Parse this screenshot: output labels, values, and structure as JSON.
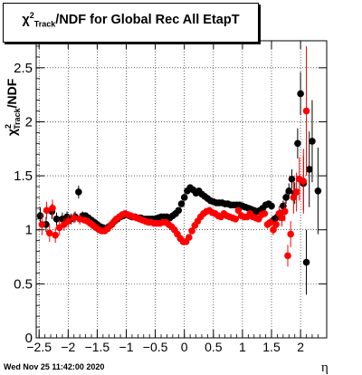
{
  "chart_data": {
    "type": "scatter",
    "title": {
      "symbol": "χ",
      "sup": "2",
      "sub": "Track",
      "rest": "/NDF for Global Rec All EtapT"
    },
    "xlabel": "η",
    "ylabel": {
      "symbol": "χ",
      "sup": "2",
      "sub": "Track",
      "rest": "/NDF"
    },
    "xlim": [
      -2.55,
      2.45
    ],
    "ylim": [
      0,
      2.75
    ],
    "x_ticks": [
      -2.5,
      -2,
      -1.5,
      -1,
      -0.5,
      0,
      0.5,
      1,
      1.5,
      2
    ],
    "x_tick_labels": [
      "−2.5",
      "−2",
      "−1.5",
      "−1",
      "−0.5",
      "0",
      "0.5",
      "1",
      "1.5",
      "2"
    ],
    "y_ticks": [
      0,
      0.5,
      1,
      1.5,
      2,
      2.5
    ],
    "y_tick_labels": [
      "0",
      "0.5",
      "1",
      "1.5",
      "2",
      "2.5"
    ],
    "grid": true,
    "series": [
      {
        "color": "#000000",
        "points": [
          {
            "x": -2.48,
            "y": 1.13,
            "err": 0.08
          },
          {
            "x": -2.38,
            "y": 1.05,
            "err": 0.07
          },
          {
            "x": -2.28,
            "y": 1.17,
            "err": 0.07
          },
          {
            "x": -2.2,
            "y": 1.1,
            "err": 0.06
          },
          {
            "x": -2.1,
            "y": 1.1,
            "err": 0.06
          },
          {
            "x": -2.02,
            "y": 1.12,
            "err": 0.05
          },
          {
            "x": -1.95,
            "y": 1.1,
            "err": 0.05
          },
          {
            "x": -1.88,
            "y": 1.12,
            "err": 0.05
          },
          {
            "x": -1.82,
            "y": 1.35,
            "err": 0.06
          },
          {
            "x": -1.75,
            "y": 1.13,
            "err": 0.04
          },
          {
            "x": -1.7,
            "y": 1.13,
            "err": 0.03
          },
          {
            "x": -1.65,
            "y": 1.11,
            "err": 0.03
          },
          {
            "x": -1.6,
            "y": 1.09,
            "err": 0.03
          },
          {
            "x": -1.55,
            "y": 1.07,
            "err": 0.03
          },
          {
            "x": -1.5,
            "y": 1.05,
            "err": 0.03
          },
          {
            "x": -1.45,
            "y": 1.03,
            "err": 0.02
          },
          {
            "x": -1.4,
            "y": 1.02,
            "err": 0.02
          },
          {
            "x": -1.35,
            "y": 1.01,
            "err": 0.02
          },
          {
            "x": -1.3,
            "y": 1.03,
            "err": 0.02
          },
          {
            "x": -1.25,
            "y": 1.05,
            "err": 0.02
          },
          {
            "x": -1.2,
            "y": 1.08,
            "err": 0.02
          },
          {
            "x": -1.15,
            "y": 1.1,
            "err": 0.02
          },
          {
            "x": -1.1,
            "y": 1.12,
            "err": 0.02
          },
          {
            "x": -1.05,
            "y": 1.13,
            "err": 0.02
          },
          {
            "x": -1.0,
            "y": 1.14,
            "err": 0.02
          },
          {
            "x": -0.95,
            "y": 1.13,
            "err": 0.02
          },
          {
            "x": -0.9,
            "y": 1.12,
            "err": 0.02
          },
          {
            "x": -0.85,
            "y": 1.12,
            "err": 0.02
          },
          {
            "x": -0.8,
            "y": 1.11,
            "err": 0.02
          },
          {
            "x": -0.75,
            "y": 1.11,
            "err": 0.02
          },
          {
            "x": -0.7,
            "y": 1.1,
            "err": 0.02
          },
          {
            "x": -0.65,
            "y": 1.1,
            "err": 0.02
          },
          {
            "x": -0.6,
            "y": 1.1,
            "err": 0.02
          },
          {
            "x": -0.55,
            "y": 1.1,
            "err": 0.02
          },
          {
            "x": -0.5,
            "y": 1.1,
            "err": 0.02
          },
          {
            "x": -0.45,
            "y": 1.11,
            "err": 0.02
          },
          {
            "x": -0.4,
            "y": 1.12,
            "err": 0.02
          },
          {
            "x": -0.35,
            "y": 1.12,
            "err": 0.02
          },
          {
            "x": -0.3,
            "y": 1.12,
            "err": 0.02
          },
          {
            "x": -0.25,
            "y": 1.11,
            "err": 0.02
          },
          {
            "x": -0.2,
            "y": 1.13,
            "err": 0.02
          },
          {
            "x": -0.15,
            "y": 1.15,
            "err": 0.02
          },
          {
            "x": -0.1,
            "y": 1.18,
            "err": 0.02
          },
          {
            "x": -0.05,
            "y": 1.24,
            "err": 0.02
          },
          {
            "x": 0.0,
            "y": 1.3,
            "err": 0.02
          },
          {
            "x": 0.05,
            "y": 1.36,
            "err": 0.02
          },
          {
            "x": 0.1,
            "y": 1.39,
            "err": 0.02
          },
          {
            "x": 0.15,
            "y": 1.37,
            "err": 0.02
          },
          {
            "x": 0.2,
            "y": 1.34,
            "err": 0.02
          },
          {
            "x": 0.25,
            "y": 1.36,
            "err": 0.02
          },
          {
            "x": 0.3,
            "y": 1.33,
            "err": 0.02
          },
          {
            "x": 0.35,
            "y": 1.31,
            "err": 0.02
          },
          {
            "x": 0.4,
            "y": 1.29,
            "err": 0.02
          },
          {
            "x": 0.45,
            "y": 1.27,
            "err": 0.02
          },
          {
            "x": 0.5,
            "y": 1.26,
            "err": 0.02
          },
          {
            "x": 0.55,
            "y": 1.25,
            "err": 0.02
          },
          {
            "x": 0.6,
            "y": 1.25,
            "err": 0.02
          },
          {
            "x": 0.65,
            "y": 1.25,
            "err": 0.02
          },
          {
            "x": 0.7,
            "y": 1.24,
            "err": 0.02
          },
          {
            "x": 0.75,
            "y": 1.24,
            "err": 0.02
          },
          {
            "x": 0.8,
            "y": 1.23,
            "err": 0.02
          },
          {
            "x": 0.85,
            "y": 1.23,
            "err": 0.02
          },
          {
            "x": 0.9,
            "y": 1.23,
            "err": 0.02
          },
          {
            "x": 0.95,
            "y": 1.23,
            "err": 0.02
          },
          {
            "x": 1.0,
            "y": 1.22,
            "err": 0.02
          },
          {
            "x": 1.05,
            "y": 1.21,
            "err": 0.02
          },
          {
            "x": 1.1,
            "y": 1.2,
            "err": 0.02
          },
          {
            "x": 1.15,
            "y": 1.19,
            "err": 0.02
          },
          {
            "x": 1.2,
            "y": 1.18,
            "err": 0.02
          },
          {
            "x": 1.25,
            "y": 1.17,
            "err": 0.02
          },
          {
            "x": 1.3,
            "y": 1.18,
            "err": 0.02
          },
          {
            "x": 1.35,
            "y": 1.2,
            "err": 0.02
          },
          {
            "x": 1.4,
            "y": 1.23,
            "err": 0.03
          },
          {
            "x": 1.45,
            "y": 1.24,
            "err": 0.03
          },
          {
            "x": 1.5,
            "y": 1.22,
            "err": 0.03
          },
          {
            "x": 1.55,
            "y": 1.1,
            "err": 0.03
          },
          {
            "x": 1.6,
            "y": 1.12,
            "err": 0.04
          },
          {
            "x": 1.65,
            "y": 1.15,
            "err": 0.04
          },
          {
            "x": 1.7,
            "y": 1.22,
            "err": 0.05
          },
          {
            "x": 1.75,
            "y": 1.3,
            "err": 0.06
          },
          {
            "x": 1.8,
            "y": 1.36,
            "err": 0.07
          },
          {
            "x": 1.85,
            "y": 1.47,
            "err": 0.09
          },
          {
            "x": 1.9,
            "y": 1.34,
            "err": 0.1
          },
          {
            "x": 1.95,
            "y": 1.8,
            "err": 0.14
          },
          {
            "x": 2.0,
            "y": 2.26,
            "err": 0.2
          },
          {
            "x": 2.05,
            "y": 1.43,
            "err": 0.25
          },
          {
            "x": 2.1,
            "y": 0.7,
            "err": 0.3
          },
          {
            "x": 2.15,
            "y": 1.56,
            "err": 0.35
          },
          {
            "x": 2.2,
            "y": 1.82,
            "err": 0.38
          },
          {
            "x": 2.3,
            "y": 1.36,
            "err": 0.4
          }
        ]
      },
      {
        "color": "#ff0000",
        "points": [
          {
            "x": -2.45,
            "y": 1.05,
            "err": 0.1
          },
          {
            "x": -2.37,
            "y": 1.18,
            "err": 0.08
          },
          {
            "x": -2.32,
            "y": 0.97,
            "err": 0.08
          },
          {
            "x": -2.27,
            "y": 1.2,
            "err": 0.08
          },
          {
            "x": -2.22,
            "y": 0.95,
            "err": 0.07
          },
          {
            "x": -2.15,
            "y": 1.02,
            "err": 0.07
          },
          {
            "x": -2.07,
            "y": 1.05,
            "err": 0.06
          },
          {
            "x": -2.0,
            "y": 1.08,
            "err": 0.06
          },
          {
            "x": -1.9,
            "y": 1.11,
            "err": 0.05
          },
          {
            "x": -1.8,
            "y": 1.1,
            "err": 0.05
          },
          {
            "x": -1.72,
            "y": 1.09,
            "err": 0.03
          },
          {
            "x": -1.67,
            "y": 1.08,
            "err": 0.03
          },
          {
            "x": -1.62,
            "y": 1.06,
            "err": 0.03
          },
          {
            "x": -1.57,
            "y": 1.04,
            "err": 0.03
          },
          {
            "x": -1.52,
            "y": 1.02,
            "err": 0.03
          },
          {
            "x": -1.47,
            "y": 1.0,
            "err": 0.02
          },
          {
            "x": -1.42,
            "y": 0.99,
            "err": 0.02
          },
          {
            "x": -1.37,
            "y": 0.99,
            "err": 0.02
          },
          {
            "x": -1.32,
            "y": 1.01,
            "err": 0.02
          },
          {
            "x": -1.27,
            "y": 1.04,
            "err": 0.02
          },
          {
            "x": -1.22,
            "y": 1.07,
            "err": 0.02
          },
          {
            "x": -1.17,
            "y": 1.1,
            "err": 0.02
          },
          {
            "x": -1.12,
            "y": 1.12,
            "err": 0.02
          },
          {
            "x": -1.07,
            "y": 1.14,
            "err": 0.02
          },
          {
            "x": -1.02,
            "y": 1.15,
            "err": 0.02
          },
          {
            "x": -0.97,
            "y": 1.14,
            "err": 0.02
          },
          {
            "x": -0.92,
            "y": 1.13,
            "err": 0.02
          },
          {
            "x": -0.87,
            "y": 1.12,
            "err": 0.02
          },
          {
            "x": -0.82,
            "y": 1.11,
            "err": 0.02
          },
          {
            "x": -0.77,
            "y": 1.1,
            "err": 0.02
          },
          {
            "x": -0.72,
            "y": 1.09,
            "err": 0.02
          },
          {
            "x": -0.67,
            "y": 1.08,
            "err": 0.02
          },
          {
            "x": -0.62,
            "y": 1.07,
            "err": 0.02
          },
          {
            "x": -0.57,
            "y": 1.07,
            "err": 0.02
          },
          {
            "x": -0.52,
            "y": 1.06,
            "err": 0.02
          },
          {
            "x": -0.47,
            "y": 1.06,
            "err": 0.02
          },
          {
            "x": -0.42,
            "y": 1.06,
            "err": 0.02
          },
          {
            "x": -0.37,
            "y": 1.07,
            "err": 0.02
          },
          {
            "x": -0.32,
            "y": 1.07,
            "err": 0.02
          },
          {
            "x": -0.27,
            "y": 1.05,
            "err": 0.02
          },
          {
            "x": -0.22,
            "y": 1.03,
            "err": 0.02
          },
          {
            "x": -0.17,
            "y": 1.0,
            "err": 0.02
          },
          {
            "x": -0.12,
            "y": 0.96,
            "err": 0.02
          },
          {
            "x": -0.07,
            "y": 0.92,
            "err": 0.02
          },
          {
            "x": -0.02,
            "y": 0.89,
            "err": 0.02
          },
          {
            "x": 0.03,
            "y": 0.89,
            "err": 0.02
          },
          {
            "x": 0.08,
            "y": 0.93,
            "err": 0.02
          },
          {
            "x": 0.13,
            "y": 0.99,
            "err": 0.02
          },
          {
            "x": 0.18,
            "y": 1.04,
            "err": 0.02
          },
          {
            "x": 0.23,
            "y": 1.08,
            "err": 0.02
          },
          {
            "x": 0.28,
            "y": 1.12,
            "err": 0.02
          },
          {
            "x": 0.33,
            "y": 1.15,
            "err": 0.02
          },
          {
            "x": 0.38,
            "y": 1.17,
            "err": 0.02
          },
          {
            "x": 0.43,
            "y": 1.18,
            "err": 0.02
          },
          {
            "x": 0.48,
            "y": 1.16,
            "err": 0.02
          },
          {
            "x": 0.53,
            "y": 1.15,
            "err": 0.02
          },
          {
            "x": 0.58,
            "y": 1.13,
            "err": 0.02
          },
          {
            "x": 0.63,
            "y": 1.12,
            "err": 0.02
          },
          {
            "x": 0.68,
            "y": 1.15,
            "err": 0.02
          },
          {
            "x": 0.73,
            "y": 1.13,
            "err": 0.02
          },
          {
            "x": 0.78,
            "y": 1.12,
            "err": 0.02
          },
          {
            "x": 0.83,
            "y": 1.11,
            "err": 0.02
          },
          {
            "x": 0.88,
            "y": 1.1,
            "err": 0.02
          },
          {
            "x": 0.93,
            "y": 1.18,
            "err": 0.02
          },
          {
            "x": 0.98,
            "y": 1.13,
            "err": 0.02
          },
          {
            "x": 1.03,
            "y": 1.12,
            "err": 0.02
          },
          {
            "x": 1.08,
            "y": 1.12,
            "err": 0.02
          },
          {
            "x": 1.13,
            "y": 1.15,
            "err": 0.02
          },
          {
            "x": 1.18,
            "y": 1.12,
            "err": 0.02
          },
          {
            "x": 1.23,
            "y": 1.11,
            "err": 0.03
          },
          {
            "x": 1.28,
            "y": 1.1,
            "err": 0.03
          },
          {
            "x": 1.33,
            "y": 1.14,
            "err": 0.03
          },
          {
            "x": 1.38,
            "y": 1.15,
            "err": 0.03
          },
          {
            "x": 1.43,
            "y": 1.05,
            "err": 0.04
          },
          {
            "x": 1.48,
            "y": 1.07,
            "err": 0.04
          },
          {
            "x": 1.53,
            "y": 1.0,
            "err": 0.05
          },
          {
            "x": 1.58,
            "y": 1.05,
            "err": 0.06
          },
          {
            "x": 1.63,
            "y": 1.15,
            "err": 0.07
          },
          {
            "x": 1.68,
            "y": 1.11,
            "err": 0.08
          },
          {
            "x": 1.73,
            "y": 1.17,
            "err": 0.09
          },
          {
            "x": 1.78,
            "y": 0.76,
            "err": 0.1
          },
          {
            "x": 1.83,
            "y": 0.96,
            "err": 0.12
          },
          {
            "x": 1.88,
            "y": 1.3,
            "err": 0.15
          },
          {
            "x": 1.93,
            "y": 1.35,
            "err": 0.18
          },
          {
            "x": 1.98,
            "y": 1.47,
            "err": 0.2
          },
          {
            "x": 2.05,
            "y": 1.45,
            "err": 0.3
          },
          {
            "x": 2.1,
            "y": 2.1,
            "err": 0.6
          }
        ]
      }
    ]
  },
  "footer": {
    "timestamp": "Wed Nov 25 11:42:00 2020"
  }
}
